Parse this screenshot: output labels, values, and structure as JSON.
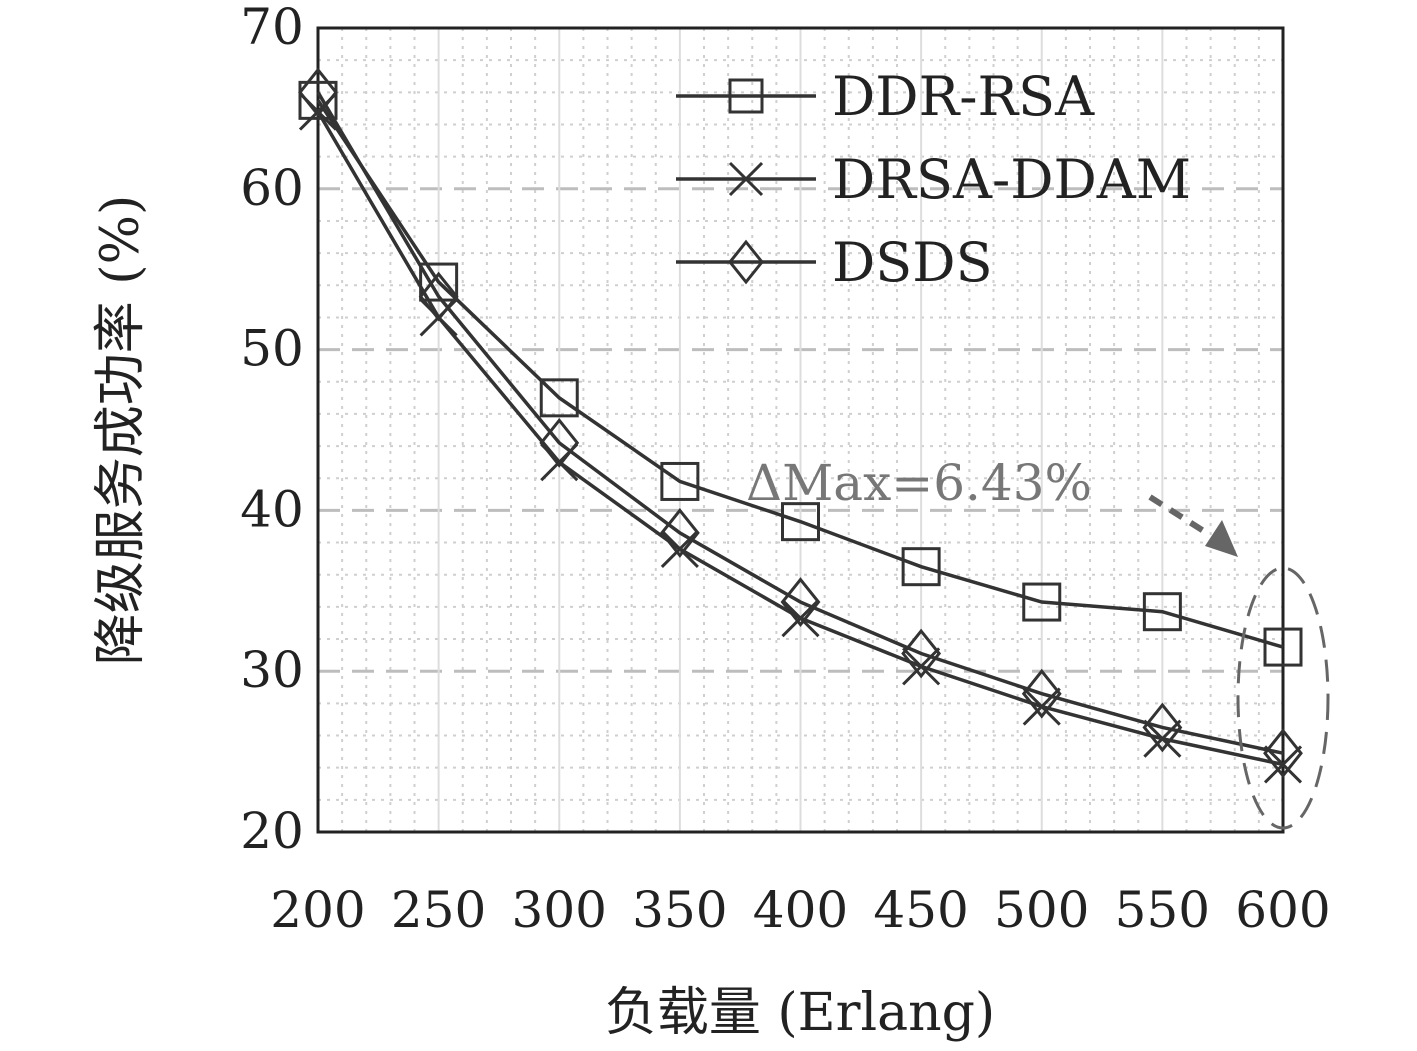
{
  "chart_data": {
    "type": "line",
    "x": [
      200,
      250,
      300,
      350,
      400,
      450,
      500,
      550,
      600
    ],
    "xlabel": "负载量 (Erlang)",
    "ylabel": "降级服务成功率 (%)",
    "xlim": [
      200,
      600
    ],
    "ylim": [
      20,
      70
    ],
    "xticks": [
      "200",
      "250",
      "300",
      "350",
      "400",
      "450",
      "500",
      "550",
      "600"
    ],
    "yticks": [
      "20",
      "30",
      "40",
      "50",
      "60",
      "70"
    ],
    "grid": true,
    "legend_position": "top-right",
    "series": [
      {
        "name": "DDR-RSA",
        "marker": "square",
        "color": "#333333",
        "values": [
          65.5,
          54.2,
          47.0,
          41.8,
          39.3,
          36.5,
          34.3,
          33.7,
          31.5
        ]
      },
      {
        "name": "DRSA-DDAM",
        "marker": "x",
        "color": "#333333",
        "values": [
          64.8,
          52.0,
          43.0,
          37.6,
          33.3,
          30.3,
          27.8,
          25.8,
          24.2
        ]
      },
      {
        "name": "DSDS",
        "marker": "diamond",
        "color": "#333333",
        "values": [
          66.0,
          53.3,
          44.2,
          38.6,
          34.3,
          31.1,
          28.6,
          26.5,
          24.9
        ]
      }
    ],
    "annotations": [
      {
        "text": "ΔMax=6.43%",
        "color": "#777777"
      }
    ]
  }
}
